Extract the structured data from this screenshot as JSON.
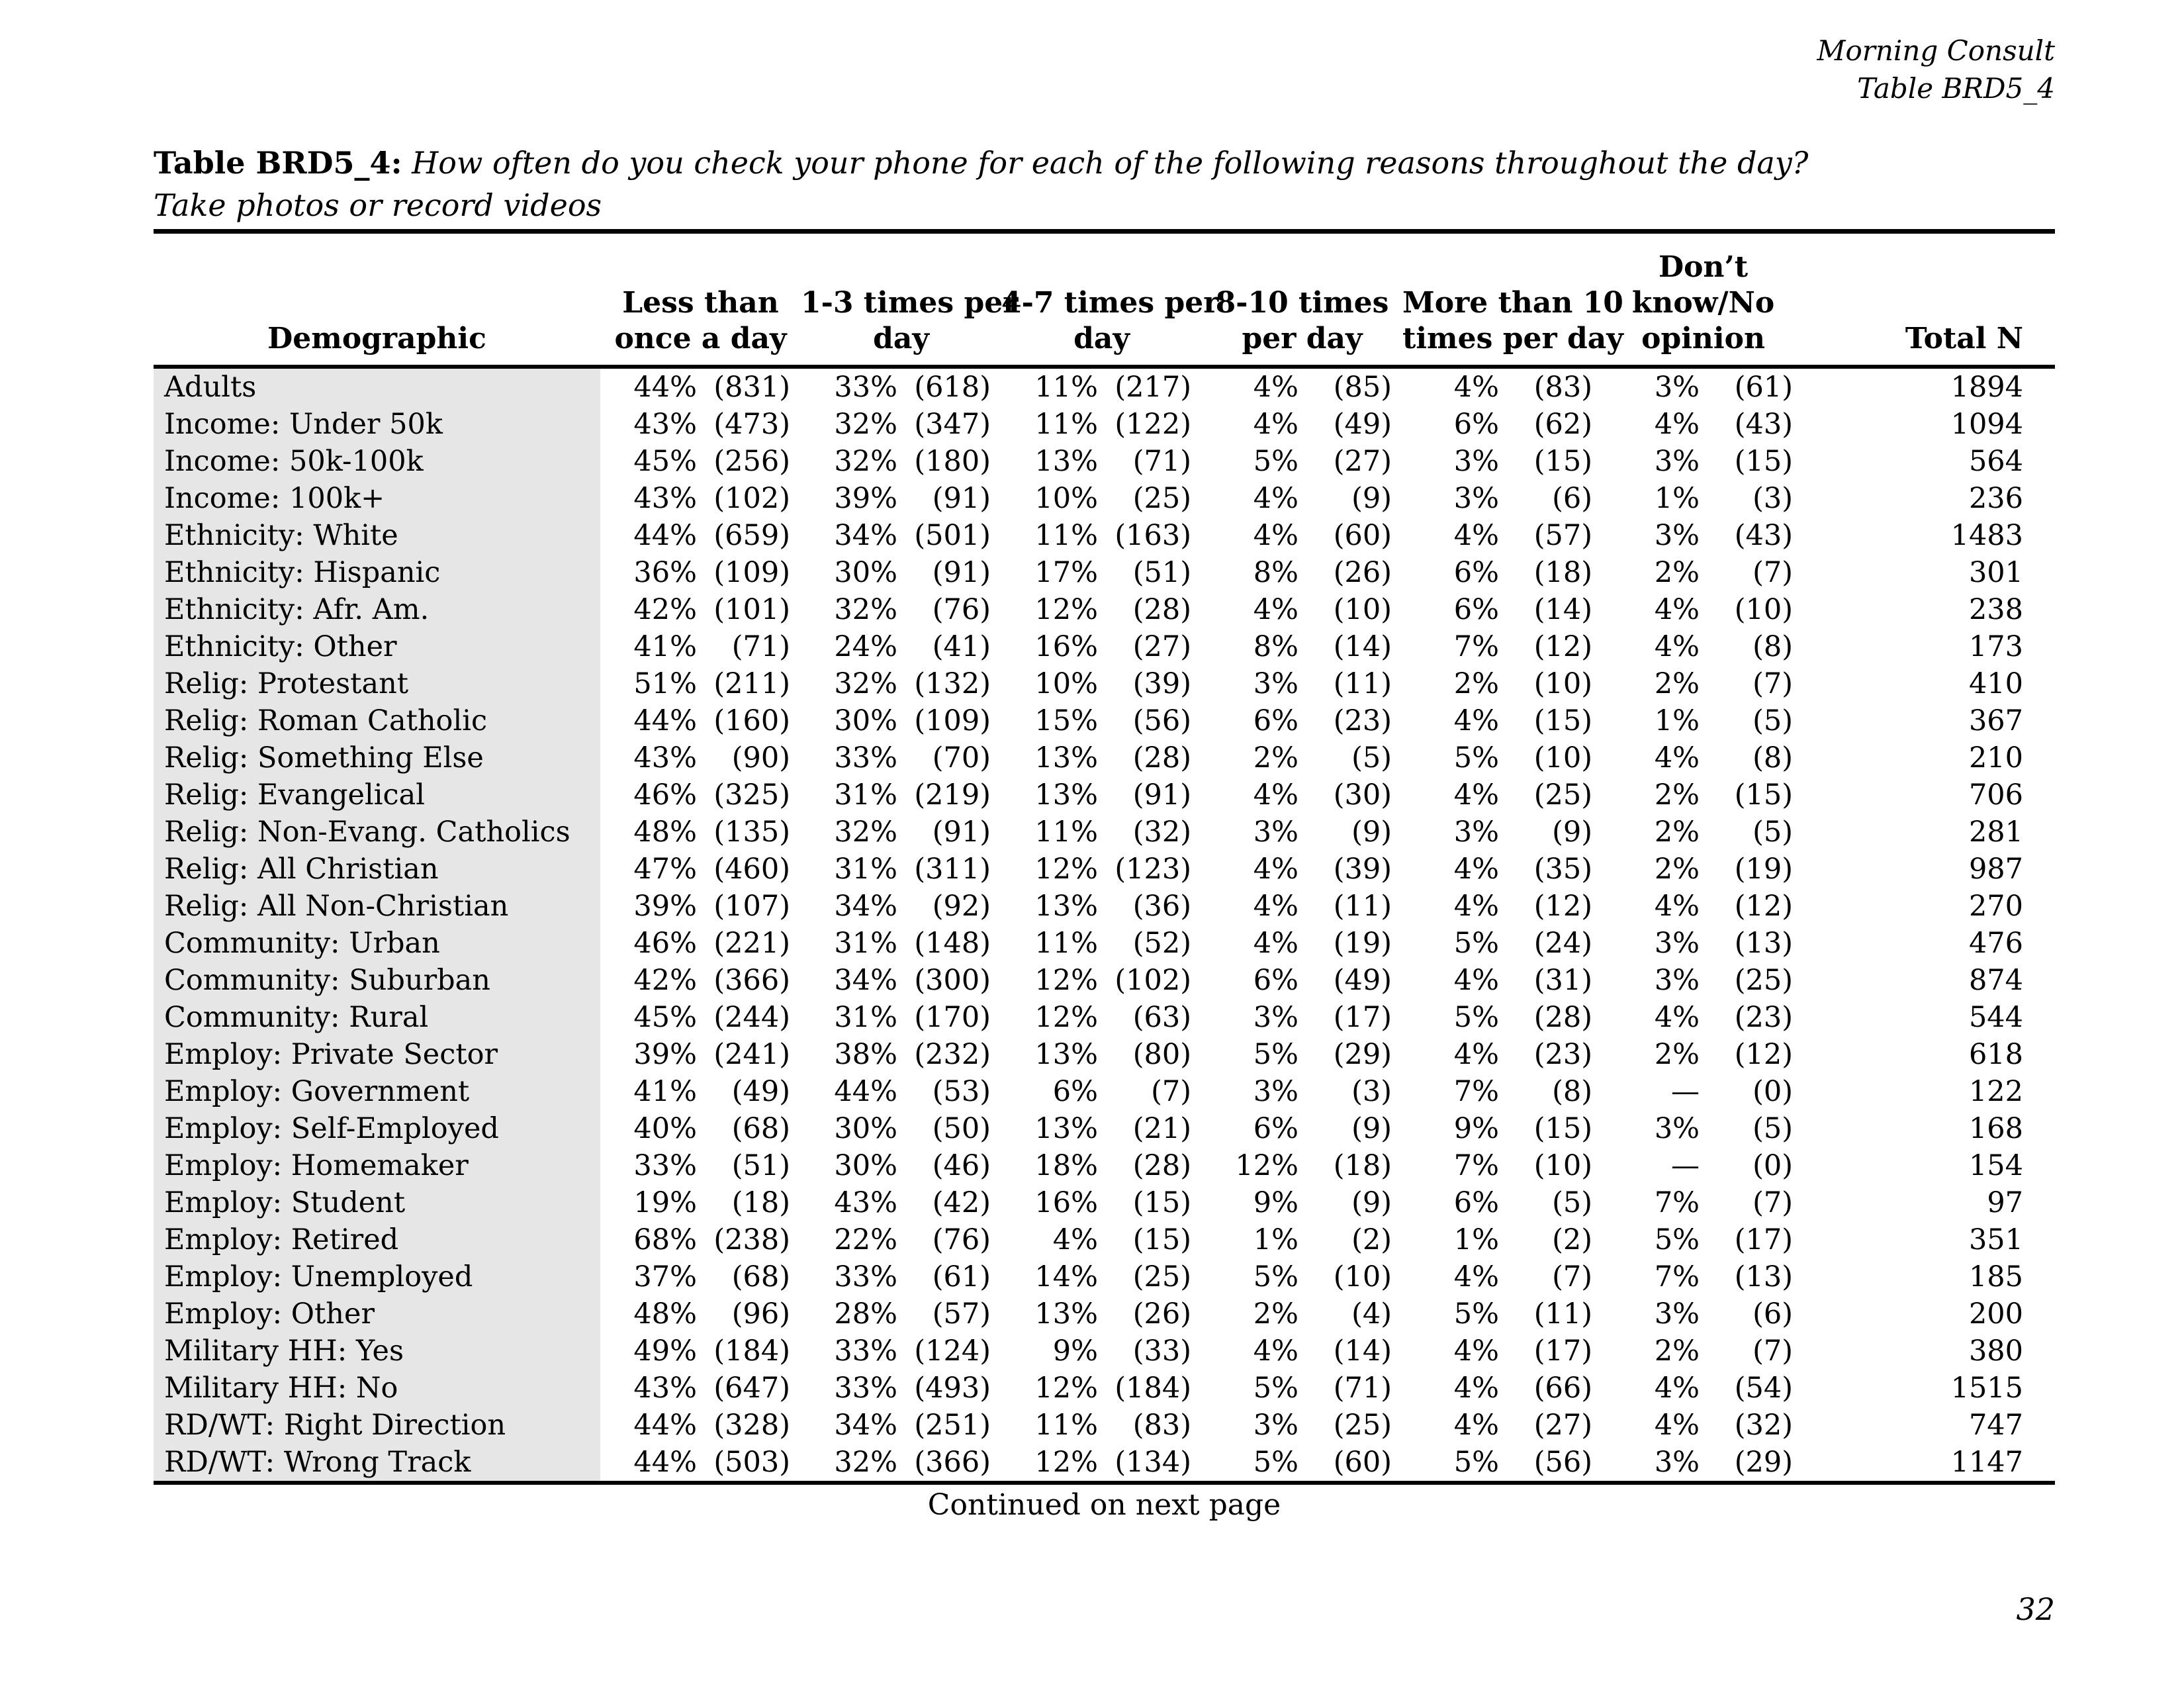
{
  "page": {
    "header_right_line1": "Morning Consult",
    "header_right_line2": "Table BRD5_4",
    "title_prefix": "Table BRD5_4:",
    "title_question": "How often do you check your phone for each of the following reasons throughout the day?",
    "title_sub": "Take photos or record videos",
    "footer_continued": "Continued on next page",
    "page_number": "32"
  },
  "table": {
    "col_headers": {
      "demographic": "Demographic",
      "groups": [
        {
          "lines": [
            "Less than",
            "once a day"
          ]
        },
        {
          "lines": [
            "1-3 times per",
            "day"
          ]
        },
        {
          "lines": [
            "4-7 times per",
            "day"
          ]
        },
        {
          "lines": [
            "8-10 times",
            "per day"
          ]
        },
        {
          "lines": [
            "More than 10",
            "times per day"
          ]
        },
        {
          "lines": [
            "Don’t",
            "know/No",
            "opinion"
          ]
        }
      ],
      "total": "Total N"
    },
    "rows": [
      {
        "label": "Adults",
        "values": [
          {
            "pct": "44%",
            "n": "(831)"
          },
          {
            "pct": "33%",
            "n": "(618)"
          },
          {
            "pct": "11%",
            "n": "(217)"
          },
          {
            "pct": "4%",
            "n": "(85)"
          },
          {
            "pct": "4%",
            "n": "(83)"
          },
          {
            "pct": "3%",
            "n": "(61)"
          }
        ],
        "total": "1894"
      },
      {
        "label": "Income: Under 50k",
        "values": [
          {
            "pct": "43%",
            "n": "(473)"
          },
          {
            "pct": "32%",
            "n": "(347)"
          },
          {
            "pct": "11%",
            "n": "(122)"
          },
          {
            "pct": "4%",
            "n": "(49)"
          },
          {
            "pct": "6%",
            "n": "(62)"
          },
          {
            "pct": "4%",
            "n": "(43)"
          }
        ],
        "total": "1094"
      },
      {
        "label": "Income: 50k-100k",
        "values": [
          {
            "pct": "45%",
            "n": "(256)"
          },
          {
            "pct": "32%",
            "n": "(180)"
          },
          {
            "pct": "13%",
            "n": "(71)"
          },
          {
            "pct": "5%",
            "n": "(27)"
          },
          {
            "pct": "3%",
            "n": "(15)"
          },
          {
            "pct": "3%",
            "n": "(15)"
          }
        ],
        "total": "564"
      },
      {
        "label": "Income: 100k+",
        "values": [
          {
            "pct": "43%",
            "n": "(102)"
          },
          {
            "pct": "39%",
            "n": "(91)"
          },
          {
            "pct": "10%",
            "n": "(25)"
          },
          {
            "pct": "4%",
            "n": "(9)"
          },
          {
            "pct": "3%",
            "n": "(6)"
          },
          {
            "pct": "1%",
            "n": "(3)"
          }
        ],
        "total": "236"
      },
      {
        "label": "Ethnicity: White",
        "values": [
          {
            "pct": "44%",
            "n": "(659)"
          },
          {
            "pct": "34%",
            "n": "(501)"
          },
          {
            "pct": "11%",
            "n": "(163)"
          },
          {
            "pct": "4%",
            "n": "(60)"
          },
          {
            "pct": "4%",
            "n": "(57)"
          },
          {
            "pct": "3%",
            "n": "(43)"
          }
        ],
        "total": "1483"
      },
      {
        "label": "Ethnicity: Hispanic",
        "values": [
          {
            "pct": "36%",
            "n": "(109)"
          },
          {
            "pct": "30%",
            "n": "(91)"
          },
          {
            "pct": "17%",
            "n": "(51)"
          },
          {
            "pct": "8%",
            "n": "(26)"
          },
          {
            "pct": "6%",
            "n": "(18)"
          },
          {
            "pct": "2%",
            "n": "(7)"
          }
        ],
        "total": "301"
      },
      {
        "label": "Ethnicity: Afr. Am.",
        "values": [
          {
            "pct": "42%",
            "n": "(101)"
          },
          {
            "pct": "32%",
            "n": "(76)"
          },
          {
            "pct": "12%",
            "n": "(28)"
          },
          {
            "pct": "4%",
            "n": "(10)"
          },
          {
            "pct": "6%",
            "n": "(14)"
          },
          {
            "pct": "4%",
            "n": "(10)"
          }
        ],
        "total": "238"
      },
      {
        "label": "Ethnicity: Other",
        "values": [
          {
            "pct": "41%",
            "n": "(71)"
          },
          {
            "pct": "24%",
            "n": "(41)"
          },
          {
            "pct": "16%",
            "n": "(27)"
          },
          {
            "pct": "8%",
            "n": "(14)"
          },
          {
            "pct": "7%",
            "n": "(12)"
          },
          {
            "pct": "4%",
            "n": "(8)"
          }
        ],
        "total": "173"
      },
      {
        "label": "Relig: Protestant",
        "values": [
          {
            "pct": "51%",
            "n": "(211)"
          },
          {
            "pct": "32%",
            "n": "(132)"
          },
          {
            "pct": "10%",
            "n": "(39)"
          },
          {
            "pct": "3%",
            "n": "(11)"
          },
          {
            "pct": "2%",
            "n": "(10)"
          },
          {
            "pct": "2%",
            "n": "(7)"
          }
        ],
        "total": "410"
      },
      {
        "label": "Relig: Roman Catholic",
        "values": [
          {
            "pct": "44%",
            "n": "(160)"
          },
          {
            "pct": "30%",
            "n": "(109)"
          },
          {
            "pct": "15%",
            "n": "(56)"
          },
          {
            "pct": "6%",
            "n": "(23)"
          },
          {
            "pct": "4%",
            "n": "(15)"
          },
          {
            "pct": "1%",
            "n": "(5)"
          }
        ],
        "total": "367"
      },
      {
        "label": "Relig: Something Else",
        "values": [
          {
            "pct": "43%",
            "n": "(90)"
          },
          {
            "pct": "33%",
            "n": "(70)"
          },
          {
            "pct": "13%",
            "n": "(28)"
          },
          {
            "pct": "2%",
            "n": "(5)"
          },
          {
            "pct": "5%",
            "n": "(10)"
          },
          {
            "pct": "4%",
            "n": "(8)"
          }
        ],
        "total": "210"
      },
      {
        "label": "Relig: Evangelical",
        "values": [
          {
            "pct": "46%",
            "n": "(325)"
          },
          {
            "pct": "31%",
            "n": "(219)"
          },
          {
            "pct": "13%",
            "n": "(91)"
          },
          {
            "pct": "4%",
            "n": "(30)"
          },
          {
            "pct": "4%",
            "n": "(25)"
          },
          {
            "pct": "2%",
            "n": "(15)"
          }
        ],
        "total": "706"
      },
      {
        "label": "Relig: Non-Evang. Catholics",
        "values": [
          {
            "pct": "48%",
            "n": "(135)"
          },
          {
            "pct": "32%",
            "n": "(91)"
          },
          {
            "pct": "11%",
            "n": "(32)"
          },
          {
            "pct": "3%",
            "n": "(9)"
          },
          {
            "pct": "3%",
            "n": "(9)"
          },
          {
            "pct": "2%",
            "n": "(5)"
          }
        ],
        "total": "281"
      },
      {
        "label": "Relig: All Christian",
        "values": [
          {
            "pct": "47%",
            "n": "(460)"
          },
          {
            "pct": "31%",
            "n": "(311)"
          },
          {
            "pct": "12%",
            "n": "(123)"
          },
          {
            "pct": "4%",
            "n": "(39)"
          },
          {
            "pct": "4%",
            "n": "(35)"
          },
          {
            "pct": "2%",
            "n": "(19)"
          }
        ],
        "total": "987"
      },
      {
        "label": "Relig: All Non-Christian",
        "values": [
          {
            "pct": "39%",
            "n": "(107)"
          },
          {
            "pct": "34%",
            "n": "(92)"
          },
          {
            "pct": "13%",
            "n": "(36)"
          },
          {
            "pct": "4%",
            "n": "(11)"
          },
          {
            "pct": "4%",
            "n": "(12)"
          },
          {
            "pct": "4%",
            "n": "(12)"
          }
        ],
        "total": "270"
      },
      {
        "label": "Community: Urban",
        "values": [
          {
            "pct": "46%",
            "n": "(221)"
          },
          {
            "pct": "31%",
            "n": "(148)"
          },
          {
            "pct": "11%",
            "n": "(52)"
          },
          {
            "pct": "4%",
            "n": "(19)"
          },
          {
            "pct": "5%",
            "n": "(24)"
          },
          {
            "pct": "3%",
            "n": "(13)"
          }
        ],
        "total": "476"
      },
      {
        "label": "Community: Suburban",
        "values": [
          {
            "pct": "42%",
            "n": "(366)"
          },
          {
            "pct": "34%",
            "n": "(300)"
          },
          {
            "pct": "12%",
            "n": "(102)"
          },
          {
            "pct": "6%",
            "n": "(49)"
          },
          {
            "pct": "4%",
            "n": "(31)"
          },
          {
            "pct": "3%",
            "n": "(25)"
          }
        ],
        "total": "874"
      },
      {
        "label": "Community: Rural",
        "values": [
          {
            "pct": "45%",
            "n": "(244)"
          },
          {
            "pct": "31%",
            "n": "(170)"
          },
          {
            "pct": "12%",
            "n": "(63)"
          },
          {
            "pct": "3%",
            "n": "(17)"
          },
          {
            "pct": "5%",
            "n": "(28)"
          },
          {
            "pct": "4%",
            "n": "(23)"
          }
        ],
        "total": "544"
      },
      {
        "label": "Employ: Private Sector",
        "values": [
          {
            "pct": "39%",
            "n": "(241)"
          },
          {
            "pct": "38%",
            "n": "(232)"
          },
          {
            "pct": "13%",
            "n": "(80)"
          },
          {
            "pct": "5%",
            "n": "(29)"
          },
          {
            "pct": "4%",
            "n": "(23)"
          },
          {
            "pct": "2%",
            "n": "(12)"
          }
        ],
        "total": "618"
      },
      {
        "label": "Employ: Government",
        "values": [
          {
            "pct": "41%",
            "n": "(49)"
          },
          {
            "pct": "44%",
            "n": "(53)"
          },
          {
            "pct": "6%",
            "n": "(7)"
          },
          {
            "pct": "3%",
            "n": "(3)"
          },
          {
            "pct": "7%",
            "n": "(8)"
          },
          {
            "pct": "—",
            "n": "(0)"
          }
        ],
        "total": "122"
      },
      {
        "label": "Employ: Self-Employed",
        "values": [
          {
            "pct": "40%",
            "n": "(68)"
          },
          {
            "pct": "30%",
            "n": "(50)"
          },
          {
            "pct": "13%",
            "n": "(21)"
          },
          {
            "pct": "6%",
            "n": "(9)"
          },
          {
            "pct": "9%",
            "n": "(15)"
          },
          {
            "pct": "3%",
            "n": "(5)"
          }
        ],
        "total": "168"
      },
      {
        "label": "Employ: Homemaker",
        "values": [
          {
            "pct": "33%",
            "n": "(51)"
          },
          {
            "pct": "30%",
            "n": "(46)"
          },
          {
            "pct": "18%",
            "n": "(28)"
          },
          {
            "pct": "12%",
            "n": "(18)"
          },
          {
            "pct": "7%",
            "n": "(10)"
          },
          {
            "pct": "—",
            "n": "(0)"
          }
        ],
        "total": "154"
      },
      {
        "label": "Employ: Student",
        "values": [
          {
            "pct": "19%",
            "n": "(18)"
          },
          {
            "pct": "43%",
            "n": "(42)"
          },
          {
            "pct": "16%",
            "n": "(15)"
          },
          {
            "pct": "9%",
            "n": "(9)"
          },
          {
            "pct": "6%",
            "n": "(5)"
          },
          {
            "pct": "7%",
            "n": "(7)"
          }
        ],
        "total": "97"
      },
      {
        "label": "Employ: Retired",
        "values": [
          {
            "pct": "68%",
            "n": "(238)"
          },
          {
            "pct": "22%",
            "n": "(76)"
          },
          {
            "pct": "4%",
            "n": "(15)"
          },
          {
            "pct": "1%",
            "n": "(2)"
          },
          {
            "pct": "1%",
            "n": "(2)"
          },
          {
            "pct": "5%",
            "n": "(17)"
          }
        ],
        "total": "351"
      },
      {
        "label": "Employ: Unemployed",
        "values": [
          {
            "pct": "37%",
            "n": "(68)"
          },
          {
            "pct": "33%",
            "n": "(61)"
          },
          {
            "pct": "14%",
            "n": "(25)"
          },
          {
            "pct": "5%",
            "n": "(10)"
          },
          {
            "pct": "4%",
            "n": "(7)"
          },
          {
            "pct": "7%",
            "n": "(13)"
          }
        ],
        "total": "185"
      },
      {
        "label": "Employ: Other",
        "values": [
          {
            "pct": "48%",
            "n": "(96)"
          },
          {
            "pct": "28%",
            "n": "(57)"
          },
          {
            "pct": "13%",
            "n": "(26)"
          },
          {
            "pct": "2%",
            "n": "(4)"
          },
          {
            "pct": "5%",
            "n": "(11)"
          },
          {
            "pct": "3%",
            "n": "(6)"
          }
        ],
        "total": "200"
      },
      {
        "label": "Military HH: Yes",
        "values": [
          {
            "pct": "49%",
            "n": "(184)"
          },
          {
            "pct": "33%",
            "n": "(124)"
          },
          {
            "pct": "9%",
            "n": "(33)"
          },
          {
            "pct": "4%",
            "n": "(14)"
          },
          {
            "pct": "4%",
            "n": "(17)"
          },
          {
            "pct": "2%",
            "n": "(7)"
          }
        ],
        "total": "380"
      },
      {
        "label": "Military HH: No",
        "values": [
          {
            "pct": "43%",
            "n": "(647)"
          },
          {
            "pct": "33%",
            "n": "(493)"
          },
          {
            "pct": "12%",
            "n": "(184)"
          },
          {
            "pct": "5%",
            "n": "(71)"
          },
          {
            "pct": "4%",
            "n": "(66)"
          },
          {
            "pct": "4%",
            "n": "(54)"
          }
        ],
        "total": "1515"
      },
      {
        "label": "RD/WT: Right Direction",
        "values": [
          {
            "pct": "44%",
            "n": "(328)"
          },
          {
            "pct": "34%",
            "n": "(251)"
          },
          {
            "pct": "11%",
            "n": "(83)"
          },
          {
            "pct": "3%",
            "n": "(25)"
          },
          {
            "pct": "4%",
            "n": "(27)"
          },
          {
            "pct": "4%",
            "n": "(32)"
          }
        ],
        "total": "747"
      },
      {
        "label": "RD/WT: Wrong Track",
        "values": [
          {
            "pct": "44%",
            "n": "(503)"
          },
          {
            "pct": "32%",
            "n": "(366)"
          },
          {
            "pct": "12%",
            "n": "(134)"
          },
          {
            "pct": "5%",
            "n": "(60)"
          },
          {
            "pct": "5%",
            "n": "(56)"
          },
          {
            "pct": "3%",
            "n": "(29)"
          }
        ],
        "total": "1147"
      }
    ]
  }
}
